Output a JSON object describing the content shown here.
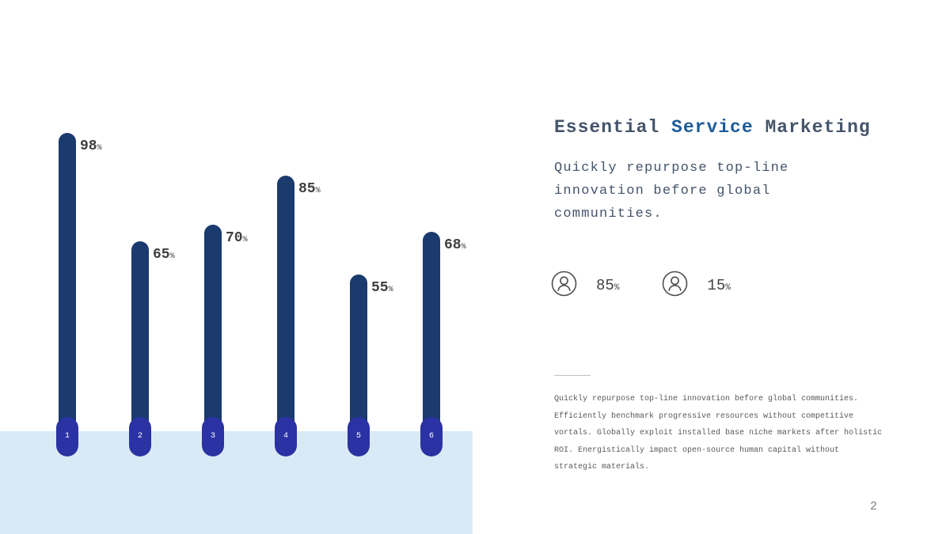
{
  "slide": {
    "page_number": "2"
  },
  "title": {
    "part1": "Essential ",
    "highlight": "Service",
    "part2": " Marketing",
    "text_color": "#44546A",
    "highlight_color": "#1D5C99"
  },
  "subtitle": {
    "lines": [
      "Quickly repurpose top-line",
      "innovation before global",
      "communities."
    ]
  },
  "stats": [
    {
      "icon": "person-icon",
      "value": "85",
      "unit": "%"
    },
    {
      "icon": "person-icon",
      "value": "15",
      "unit": "%"
    }
  ],
  "body": {
    "lines": [
      "Quickly repurpose top-line innovation before global communities.",
      "Efficiently benchmark progressive resources without competitive",
      "vortals. Globally exploit installed base niche markets after holistic",
      "ROI. Energistically impact open-source human capital without",
      "strategic materials."
    ]
  },
  "chart_data": {
    "type": "bar",
    "categories": [
      "1",
      "2",
      "3",
      "4",
      "5",
      "6"
    ],
    "values": [
      98,
      65,
      70,
      85,
      55,
      68
    ],
    "unit": "%",
    "title": "",
    "xlabel": "",
    "ylabel": "",
    "ylim": [
      0,
      100
    ],
    "grid": false,
    "legend": false,
    "bar_color": "#1B3A6E",
    "base_pill_color": "#2B32A3",
    "label_color": "#3F3F3F",
    "panel_color": "#D9EAF6"
  }
}
